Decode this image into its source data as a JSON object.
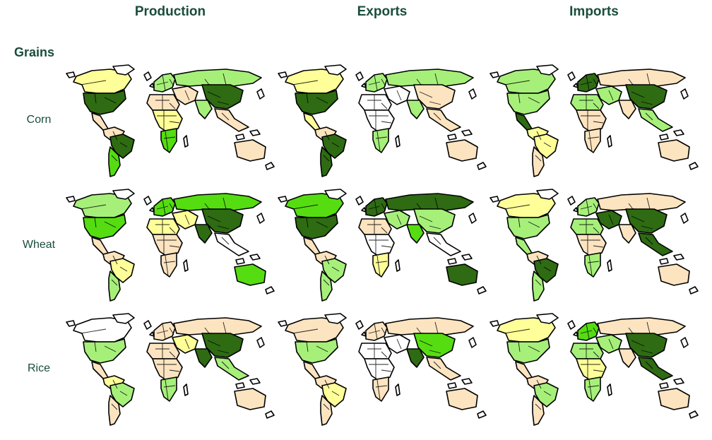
{
  "headers": {
    "production": "Production",
    "exports": "Exports",
    "imports": "Imports"
  },
  "group_title": "Grains",
  "rows": [
    {
      "label": "Corn"
    },
    {
      "label": "Wheat"
    },
    {
      "label": "Rice"
    }
  ],
  "palette": {
    "none": "#ffffff",
    "low": "#fde4c0",
    "low_mid": "#ffff99",
    "mid": "#a6f07a",
    "high": "#55dd11",
    "top": "#2e6b12"
  },
  "maps": {
    "corn": {
      "production": {
        "na_north": "low_mid",
        "na_us": "top",
        "central_am": "low",
        "sa_north": "low",
        "brazil": "top",
        "sa_south": "high",
        "europe": "mid",
        "russia": "mid",
        "asia_west": "low",
        "india": "mid",
        "china": "top",
        "se_asia": "low",
        "africa_north": "low",
        "africa_mid": "low_mid",
        "africa_south": "high",
        "australia": "low"
      },
      "exports": {
        "na_north": "low_mid",
        "na_us": "top",
        "central_am": "low_mid",
        "sa_north": "low",
        "brazil": "top",
        "sa_south": "top",
        "europe": "mid",
        "russia": "mid",
        "asia_west": "none",
        "india": "mid",
        "china": "low",
        "se_asia": "low",
        "africa_north": "none",
        "africa_mid": "none",
        "africa_south": "mid",
        "australia": "low"
      },
      "imports": {
        "na_north": "mid",
        "na_us": "mid",
        "central_am": "top",
        "sa_north": "low_mid",
        "brazil": "low_mid",
        "sa_south": "low",
        "europe": "top",
        "russia": "low",
        "asia_west": "mid",
        "india": "low",
        "china": "top",
        "se_asia": "mid",
        "africa_north": "mid",
        "africa_mid": "low",
        "africa_south": "low",
        "australia": "low"
      }
    },
    "wheat": {
      "production": {
        "na_north": "mid",
        "na_us": "high",
        "central_am": "low",
        "sa_north": "low",
        "brazil": "low_mid",
        "sa_south": "mid",
        "europe": "high",
        "russia": "high",
        "asia_west": "low_mid",
        "india": "top",
        "china": "top",
        "se_asia": "none",
        "africa_north": "low_mid",
        "africa_mid": "low",
        "africa_south": "low",
        "australia": "high"
      },
      "exports": {
        "na_north": "high",
        "na_us": "top",
        "central_am": "low",
        "sa_north": "low",
        "brazil": "mid",
        "sa_south": "mid",
        "europe": "top",
        "russia": "top",
        "asia_west": "mid",
        "india": "high",
        "china": "mid",
        "se_asia": "none",
        "africa_north": "low",
        "africa_mid": "none",
        "africa_south": "low_mid",
        "australia": "top"
      },
      "imports": {
        "na_north": "low_mid",
        "na_us": "mid",
        "central_am": "mid",
        "sa_north": "low",
        "brazil": "top",
        "sa_south": "mid",
        "europe": "mid",
        "russia": "low",
        "asia_west": "top",
        "india": "low",
        "china": "top",
        "se_asia": "top",
        "africa_north": "mid",
        "africa_mid": "low",
        "africa_south": "mid",
        "australia": "low"
      }
    },
    "rice": {
      "production": {
        "na_north": "none",
        "na_us": "mid",
        "central_am": "low",
        "sa_north": "low_mid",
        "brazil": "mid",
        "sa_south": "low",
        "europe": "low",
        "russia": "low",
        "asia_west": "low_mid",
        "india": "top",
        "china": "top",
        "se_asia": "mid",
        "africa_north": "low",
        "africa_mid": "low",
        "africa_south": "mid",
        "australia": "low"
      },
      "exports": {
        "na_north": "low",
        "na_us": "mid",
        "central_am": "low",
        "sa_north": "low",
        "brazil": "low_mid",
        "sa_south": "low",
        "europe": "low",
        "russia": "low",
        "asia_west": "none",
        "india": "top",
        "china": "high",
        "se_asia": "low",
        "africa_north": "none",
        "africa_mid": "none",
        "africa_south": "low",
        "australia": "low"
      },
      "imports": {
        "na_north": "low_mid",
        "na_us": "mid",
        "central_am": "low",
        "sa_north": "low",
        "brazil": "mid",
        "sa_south": "low",
        "europe": "high",
        "russia": "low",
        "asia_west": "mid",
        "india": "low",
        "china": "top",
        "se_asia": "top",
        "africa_north": "mid",
        "africa_mid": "low_mid",
        "africa_south": "mid",
        "australia": "low"
      }
    }
  }
}
